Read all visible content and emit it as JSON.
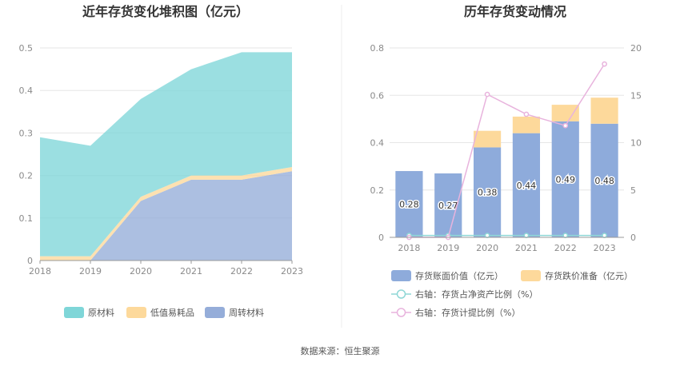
{
  "source": "数据来源：恒生聚源",
  "chart_data": [
    {
      "type": "area",
      "stacked": true,
      "title": "近年存货变化堆积图（亿元）",
      "x": [
        "2018",
        "2019",
        "2020",
        "2021",
        "2022",
        "2023"
      ],
      "ylim": [
        0,
        0.5
      ],
      "yticks": [
        "0",
        "0.1",
        "0.2",
        "0.3",
        "0.4",
        "0.5"
      ],
      "grid": true,
      "legend_position": "bottom",
      "series": [
        {
          "name": "原材料",
          "color": "#7fd6d8",
          "values": [
            0.28,
            0.26,
            0.23,
            0.25,
            0.29,
            0.27
          ]
        },
        {
          "name": "低值易耗品",
          "color": "#fdd99b",
          "values": [
            0.01,
            0.01,
            0.01,
            0.01,
            0.01,
            0.01
          ]
        },
        {
          "name": "周转材料",
          "color": "#95add9",
          "values": [
            0,
            0,
            0.14,
            0.19,
            0.19,
            0.21
          ]
        }
      ],
      "stack_order": [
        "周转材料",
        "低值易耗品",
        "原材料"
      ]
    },
    {
      "type": "bar",
      "stacked": true,
      "title": "历年存货变动情况",
      "categories": [
        "2018",
        "2019",
        "2020",
        "2021",
        "2022",
        "2023"
      ],
      "ylim_left": [
        0,
        0.8
      ],
      "yticks_left": [
        "0",
        "0.2",
        "0.4",
        "0.6",
        "0.8"
      ],
      "ylim_right": [
        0,
        20
      ],
      "yticks_right": [
        "0",
        "5",
        "10",
        "15",
        "20"
      ],
      "grid": true,
      "legend_position": "bottom",
      "bars": [
        {
          "name": "存货账面价值（亿元）",
          "color": "#8eabdb",
          "values": [
            0.28,
            0.27,
            0.38,
            0.44,
            0.49,
            0.48
          ],
          "labels": [
            "0.28",
            "0.27",
            "0.38",
            "0.44",
            "0.49",
            "0.48"
          ]
        },
        {
          "name": "存货跌价准备（亿元）",
          "color": "#fdd99b",
          "values": [
            0,
            0,
            0.07,
            0.07,
            0.07,
            0.11
          ]
        }
      ],
      "lines": [
        {
          "name": "右轴：存货占净资产比例（%）",
          "color": "#8fd7d6",
          "axis": "right",
          "values": [
            0.2,
            0.2,
            0.2,
            0.2,
            0.2,
            0.2
          ]
        },
        {
          "name": "右轴：存货计提比例（%）",
          "color": "#e8b3dd",
          "axis": "right",
          "values": [
            0,
            0,
            15.1,
            13,
            11.8,
            18.3
          ]
        }
      ]
    }
  ]
}
